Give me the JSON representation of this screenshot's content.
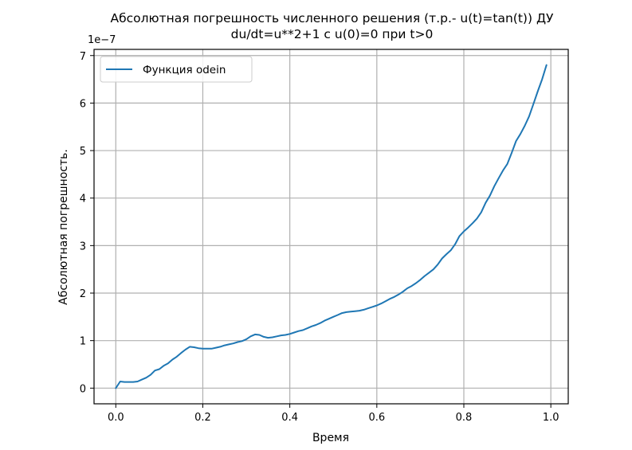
{
  "chart_data": {
    "type": "line",
    "title": "Абсолютная погрешность численного решения (т.р.- u(t)=tan(t)) ДУ",
    "subtitle": "du/dt=u**2+1 с  u(0)=0 при t>0",
    "xlabel": "Время",
    "ylabel": "Абсолютная погрешность.",
    "y_offset_label": "1e−7",
    "y_scale": 1e-07,
    "xlim": [
      -0.05,
      1.04
    ],
    "ylim": [
      -0.33,
      7.13
    ],
    "xticks": [
      0.0,
      0.2,
      0.4,
      0.6,
      0.8,
      1.0
    ],
    "xtick_labels": [
      "0.0",
      "0.2",
      "0.4",
      "0.6",
      "0.8",
      "1.0"
    ],
    "yticks": [
      0,
      1,
      2,
      3,
      4,
      5,
      6,
      7
    ],
    "ytick_labels": [
      "0",
      "1",
      "2",
      "3",
      "4",
      "5",
      "6",
      "7"
    ],
    "grid": true,
    "legend_position": "upper left",
    "series": [
      {
        "name": "Функция odein",
        "color": "#1f77b4",
        "x": [
          0.0,
          0.01,
          0.02,
          0.03,
          0.04,
          0.05,
          0.06,
          0.07,
          0.08,
          0.09,
          0.1,
          0.11,
          0.12,
          0.13,
          0.14,
          0.15,
          0.16,
          0.17,
          0.18,
          0.19,
          0.2,
          0.21,
          0.22,
          0.23,
          0.24,
          0.25,
          0.26,
          0.27,
          0.28,
          0.29,
          0.3,
          0.31,
          0.32,
          0.33,
          0.34,
          0.35,
          0.36,
          0.37,
          0.38,
          0.39,
          0.4,
          0.41,
          0.42,
          0.43,
          0.44,
          0.45,
          0.46,
          0.47,
          0.48,
          0.49,
          0.5,
          0.51,
          0.52,
          0.53,
          0.54,
          0.55,
          0.56,
          0.57,
          0.58,
          0.59,
          0.6,
          0.61,
          0.62,
          0.63,
          0.64,
          0.65,
          0.66,
          0.67,
          0.68,
          0.69,
          0.7,
          0.71,
          0.72,
          0.73,
          0.74,
          0.75,
          0.76,
          0.77,
          0.78,
          0.79,
          0.8,
          0.81,
          0.82,
          0.83,
          0.84,
          0.85,
          0.86,
          0.87,
          0.88,
          0.89,
          0.9,
          0.91,
          0.92,
          0.93,
          0.94,
          0.95,
          0.96,
          0.97,
          0.98,
          0.99
        ],
        "values": [
          0.0,
          0.14,
          0.13,
          0.13,
          0.13,
          0.14,
          0.18,
          0.22,
          0.28,
          0.37,
          0.4,
          0.47,
          0.52,
          0.6,
          0.66,
          0.74,
          0.81,
          0.87,
          0.86,
          0.84,
          0.83,
          0.83,
          0.83,
          0.85,
          0.87,
          0.9,
          0.92,
          0.94,
          0.97,
          0.99,
          1.03,
          1.09,
          1.13,
          1.12,
          1.08,
          1.06,
          1.07,
          1.09,
          1.11,
          1.12,
          1.14,
          1.17,
          1.2,
          1.22,
          1.26,
          1.3,
          1.33,
          1.37,
          1.42,
          1.46,
          1.5,
          1.54,
          1.58,
          1.6,
          1.61,
          1.62,
          1.63,
          1.65,
          1.68,
          1.71,
          1.74,
          1.78,
          1.83,
          1.88,
          1.92,
          1.97,
          2.03,
          2.1,
          2.15,
          2.21,
          2.28,
          2.36,
          2.43,
          2.5,
          2.6,
          2.73,
          2.82,
          2.9,
          3.03,
          3.2,
          3.3,
          3.38,
          3.47,
          3.57,
          3.7,
          3.9,
          4.05,
          4.25,
          4.42,
          4.58,
          4.72,
          4.95,
          5.2,
          5.35,
          5.52,
          5.72,
          5.98,
          6.25,
          6.5,
          6.8
        ]
      }
    ]
  },
  "legend": {
    "label": "Функция odein"
  }
}
